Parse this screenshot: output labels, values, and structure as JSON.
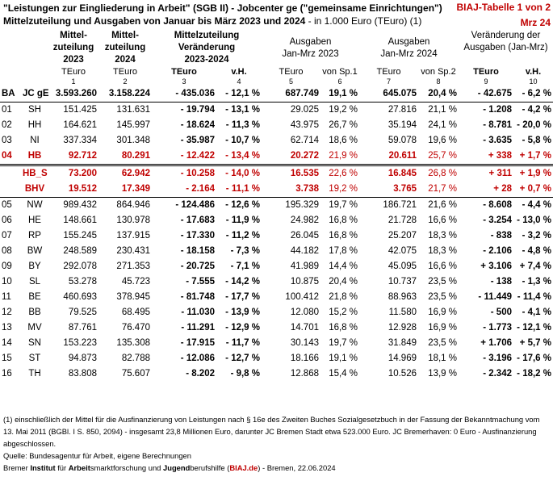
{
  "header": {
    "title_line1": "\"Leistungen zur Eingliederung in Arbeit\" (SGB II) - Jobcenter ge (\"gemeinsame Einrichtungen\")",
    "title_line2_bold": "Mittelzuteilung und Ausgaben von Januar bis März 2023 und 2024",
    "title_line2_normal": " - in 1.000 Euro (TEuro) (1)",
    "table_id": "BIAJ-Tabelle 1 von 2",
    "date_label": "Mrz 24"
  },
  "columns": {
    "h1": "Mittel-\nzuteilung\n2023",
    "h2": "Mittel-\nzuteilung\n2024",
    "h3": "Mittelzuteilung\nVeränderung\n2023-2024",
    "h4": "Ausgaben\nJan-Mrz 2023",
    "h5": "Ausgaben\nJan-Mrz 2024",
    "h6": "Veränderung der\nAusgaben (Jan-Mrz)",
    "units": [
      "TEuro",
      "TEuro",
      "TEuro",
      "v.H.",
      "TEuro",
      "von Sp.1",
      "TEuro",
      "von Sp.2",
      "TEuro",
      "v.H."
    ],
    "numbers": [
      "1",
      "2",
      "3",
      "4",
      "5",
      "6",
      "7",
      "8",
      "9",
      "10"
    ]
  },
  "rows": [
    {
      "id": "BA",
      "name": "JC gE",
      "c1": "3.593.260",
      "c2": "3.158.224",
      "c3": "- 435.036",
      "c4": "- 12,1 %",
      "c5": "687.749",
      "c6": "19,1 %",
      "c7": "645.075",
      "c8": "20,4 %",
      "c9": "- 42.675",
      "c10": "- 6,2 %",
      "style": "total"
    },
    {
      "id": "01",
      "name": "SH",
      "c1": "151.425",
      "c2": "131.631",
      "c3": "- 19.794",
      "c4": "- 13,1 %",
      "c5": "29.025",
      "c6": "19,2 %",
      "c7": "27.816",
      "c8": "21,1 %",
      "c9": "- 1.208",
      "c10": "- 4,2 %",
      "style": "first"
    },
    {
      "id": "02",
      "name": "HH",
      "c1": "164.621",
      "c2": "145.997",
      "c3": "- 18.624",
      "c4": "- 11,3 %",
      "c5": "43.975",
      "c6": "26,7 %",
      "c7": "35.194",
      "c8": "24,1 %",
      "c9": "- 8.781",
      "c10": "- 20,0 %",
      "style": ""
    },
    {
      "id": "03",
      "name": "NI",
      "c1": "337.334",
      "c2": "301.348",
      "c3": "- 35.987",
      "c4": "- 10,7 %",
      "c5": "62.714",
      "c6": "18,6 %",
      "c7": "59.078",
      "c8": "19,6 %",
      "c9": "- 3.635",
      "c10": "- 5,8 %",
      "style": ""
    },
    {
      "id": "04",
      "name": "HB",
      "c1": "92.712",
      "c2": "80.291",
      "c3": "- 12.422",
      "c4": "- 13,4 %",
      "c5": "20.272",
      "c6": "21,9 %",
      "c7": "20.611",
      "c8": "25,7 %",
      "c9": "+ 338",
      "c10": "+ 1,7 %",
      "style": "red"
    },
    {
      "id": "",
      "name": "HB_S",
      "c1": "73.200",
      "c2": "62.942",
      "c3": "- 10.258",
      "c4": "- 14,0 %",
      "c5": "16.535",
      "c6": "22,6 %",
      "c7": "16.845",
      "c8": "26,8 %",
      "c9": "+ 311",
      "c10": "+ 1,9 %",
      "style": "red dbl"
    },
    {
      "id": "",
      "name": "BHV",
      "c1": "19.512",
      "c2": "17.349",
      "c3": "- 2.164",
      "c4": "- 11,1 %",
      "c5": "3.738",
      "c6": "19,2 %",
      "c7": "3.765",
      "c8": "21,7 %",
      "c9": "+ 28",
      "c10": "+ 0,7 %",
      "style": "red sep"
    },
    {
      "id": "05",
      "name": "NW",
      "c1": "989.432",
      "c2": "864.946",
      "c3": "- 124.486",
      "c4": "- 12,6 %",
      "c5": "195.329",
      "c6": "19,7 %",
      "c7": "186.721",
      "c8": "21,6 %",
      "c9": "- 8.608",
      "c10": "- 4,4 %",
      "style": ""
    },
    {
      "id": "06",
      "name": "HE",
      "c1": "148.661",
      "c2": "130.978",
      "c3": "- 17.683",
      "c4": "- 11,9 %",
      "c5": "24.982",
      "c6": "16,8 %",
      "c7": "21.728",
      "c8": "16,6 %",
      "c9": "- 3.254",
      "c10": "- 13,0 %",
      "style": ""
    },
    {
      "id": "07",
      "name": "RP",
      "c1": "155.245",
      "c2": "137.915",
      "c3": "- 17.330",
      "c4": "- 11,2 %",
      "c5": "26.045",
      "c6": "16,8 %",
      "c7": "25.207",
      "c8": "18,3 %",
      "c9": "- 838",
      "c10": "- 3,2 %",
      "style": ""
    },
    {
      "id": "08",
      "name": "BW",
      "c1": "248.589",
      "c2": "230.431",
      "c3": "- 18.158",
      "c4": "- 7,3 %",
      "c5": "44.182",
      "c6": "17,8 %",
      "c7": "42.075",
      "c8": "18,3 %",
      "c9": "- 2.106",
      "c10": "- 4,8 %",
      "style": ""
    },
    {
      "id": "09",
      "name": "BY",
      "c1": "292.078",
      "c2": "271.353",
      "c3": "- 20.725",
      "c4": "- 7,1 %",
      "c5": "41.989",
      "c6": "14,4 %",
      "c7": "45.095",
      "c8": "16,6 %",
      "c9": "+ 3.106",
      "c10": "+ 7,4 %",
      "style": ""
    },
    {
      "id": "10",
      "name": "SL",
      "c1": "53.278",
      "c2": "45.723",
      "c3": "- 7.555",
      "c4": "- 14,2 %",
      "c5": "10.875",
      "c6": "20,4 %",
      "c7": "10.737",
      "c8": "23,5 %",
      "c9": "- 138",
      "c10": "- 1,3 %",
      "style": ""
    },
    {
      "id": "11",
      "name": "BE",
      "c1": "460.693",
      "c2": "378.945",
      "c3": "- 81.748",
      "c4": "- 17,7 %",
      "c5": "100.412",
      "c6": "21,8 %",
      "c7": "88.963",
      "c8": "23,5 %",
      "c9": "- 11.449",
      "c10": "- 11,4 %",
      "style": ""
    },
    {
      "id": "12",
      "name": "BB",
      "c1": "79.525",
      "c2": "68.495",
      "c3": "- 11.030",
      "c4": "- 13,9 %",
      "c5": "12.080",
      "c6": "15,2 %",
      "c7": "11.580",
      "c8": "16,9 %",
      "c9": "- 500",
      "c10": "- 4,1 %",
      "style": ""
    },
    {
      "id": "13",
      "name": "MV",
      "c1": "87.761",
      "c2": "76.470",
      "c3": "- 11.291",
      "c4": "- 12,9 %",
      "c5": "14.701",
      "c6": "16,8 %",
      "c7": "12.928",
      "c8": "16,9 %",
      "c9": "- 1.773",
      "c10": "- 12,1 %",
      "style": ""
    },
    {
      "id": "14",
      "name": "SN",
      "c1": "153.223",
      "c2": "135.308",
      "c3": "- 17.915",
      "c4": "- 11,7 %",
      "c5": "30.143",
      "c6": "19,7 %",
      "c7": "31.849",
      "c8": "23,5 %",
      "c9": "+ 1.706",
      "c10": "+ 5,7 %",
      "style": ""
    },
    {
      "id": "15",
      "name": "ST",
      "c1": "94.873",
      "c2": "82.788",
      "c3": "- 12.086",
      "c4": "- 12,7 %",
      "c5": "18.166",
      "c6": "19,1 %",
      "c7": "14.969",
      "c8": "18,1 %",
      "c9": "- 3.196",
      "c10": "- 17,6 %",
      "style": ""
    },
    {
      "id": "16",
      "name": "TH",
      "c1": "83.808",
      "c2": "75.607",
      "c3": "- 8.202",
      "c4": "- 9,8 %",
      "c5": "12.868",
      "c6": "15,4 %",
      "c7": "10.526",
      "c8": "13,9 %",
      "c9": "- 2.342",
      "c10": "- 18,2 %",
      "style": "last"
    }
  ],
  "footer": {
    "note1": "(1) einschließlich der Mittel für die Ausfinanzierung von Leistungen nach § 16e des Zweiten Buches Sozialgesetzbuch in der Fassung der Bekanntmachung vom 13. Mai 2011 (BGBl. I S. 850, 2094) - insgesamt 23,8 Millionen Euro, darunter JC Bremen Stadt etwa 523.000 Euro. JC Bremerhaven: 0 Euro - Ausfinanzierung abgeschlossen.",
    "source": "Quelle: Bundesagentur für Arbeit, eigene Berechnungen",
    "org_a": "Bremer ",
    "org_b": "Institut",
    "org_c": " für ",
    "org_d": "Arbeit",
    "org_e": "smarktforschung und ",
    "org_f": "Jugend",
    "org_g": "berufshilfe (",
    "org_h": "BIAJ.de",
    "org_i": ") - Bremen, 22.06.2024"
  }
}
